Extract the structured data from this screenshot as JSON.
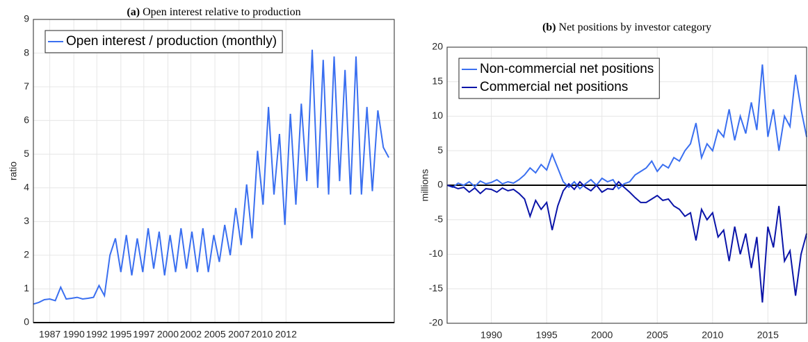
{
  "chart_data": [
    {
      "type": "line",
      "label": "(a)",
      "title": "Open interest relative to production",
      "ylabel": "ratio",
      "x": [
        1986,
        1986.5,
        1987,
        1987.5,
        1988,
        1988.5,
        1989,
        1989.5,
        1990,
        1990.5,
        1991,
        1991.5,
        1992,
        1992.5,
        1993,
        1993.5,
        1994,
        1994.5,
        1995,
        1995.5,
        1996,
        1996.5,
        1997,
        1997.5,
        1998,
        1998.5,
        1999,
        1999.5,
        2000,
        2000.5,
        2001,
        2001.5,
        2002,
        2002.5,
        2003,
        2003.5,
        2004,
        2004.5,
        2005,
        2005.5,
        2006,
        2006.5,
        2007,
        2007.5,
        2008,
        2008.5,
        2009,
        2009.5,
        2010,
        2010.5,
        2011,
        2011.5,
        2012,
        2012.5,
        2013,
        2013.5,
        2014,
        2014.5,
        2015,
        2015.5,
        2016,
        2016.5,
        2017,
        2017.5,
        2018,
        2018.5
      ],
      "series": [
        {
          "name": "Open interest / production (monthly)",
          "color": "#3a6ff0",
          "values": [
            0.55,
            0.6,
            0.68,
            0.7,
            0.65,
            1.05,
            0.7,
            0.72,
            0.75,
            0.7,
            0.72,
            0.75,
            1.1,
            0.8,
            2.0,
            2.5,
            1.5,
            2.6,
            1.4,
            2.5,
            1.5,
            2.8,
            1.6,
            2.7,
            1.4,
            2.6,
            1.5,
            2.8,
            1.6,
            2.7,
            1.5,
            2.8,
            1.5,
            2.6,
            1.8,
            2.9,
            2.0,
            3.4,
            2.3,
            4.1,
            2.5,
            5.1,
            3.5,
            6.4,
            3.8,
            5.6,
            2.9,
            6.2,
            3.5,
            6.5,
            4.2,
            8.1,
            4.0,
            7.8,
            3.8,
            7.9,
            4.2,
            7.5,
            3.8,
            7.9,
            3.8,
            6.4,
            3.9,
            6.3,
            5.2,
            4.9
          ]
        }
      ],
      "xlim": [
        1986,
        2019
      ],
      "ylim": [
        0,
        9
      ],
      "yticks": [
        0,
        1,
        2,
        3,
        4,
        5,
        6,
        7,
        8,
        9
      ],
      "xticks": [
        {
          "value": 1987.5,
          "label": "1987"
        },
        {
          "value": 1989.7,
          "label": "1990"
        },
        {
          "value": 1991.8,
          "label": "1992"
        },
        {
          "value": 1994.0,
          "label": "1995"
        },
        {
          "value": 1996.1,
          "label": "1997"
        },
        {
          "value": 1998.3,
          "label": "2000"
        },
        {
          "value": 2000.4,
          "label": "2002"
        },
        {
          "value": 2002.6,
          "label": "2005"
        },
        {
          "value": 2004.8,
          "label": "2007"
        },
        {
          "value": 2006.9,
          "label": "2010"
        },
        {
          "value": 2009.1,
          "label": "2012"
        }
      ],
      "grid": true,
      "legend": "upper-left"
    },
    {
      "type": "line",
      "label": "(b)",
      "title": "Net positions by investor category",
      "ylabel": "millions",
      "x": [
        1986,
        1986.5,
        1987,
        1987.5,
        1988,
        1988.5,
        1989,
        1989.5,
        1990,
        1990.5,
        1991,
        1991.5,
        1992,
        1992.5,
        1993,
        1993.5,
        1994,
        1994.5,
        1995,
        1995.5,
        1996,
        1996.5,
        1997,
        1997.5,
        1998,
        1998.5,
        1999,
        1999.5,
        2000,
        2000.5,
        2001,
        2001.5,
        2002,
        2002.5,
        2003,
        2003.5,
        2004,
        2004.5,
        2005,
        2005.5,
        2006,
        2006.5,
        2007,
        2007.5,
        2008,
        2008.5,
        2009,
        2009.5,
        2010,
        2010.5,
        2011,
        2011.5,
        2012,
        2012.5,
        2013,
        2013.5,
        2014,
        2014.5,
        2015,
        2015.5,
        2016,
        2016.5,
        2017,
        2017.5,
        2018,
        2018.5
      ],
      "series": [
        {
          "name": "Non-commercial net positions",
          "color": "#3a6ff0",
          "values": [
            0,
            -0.3,
            0.3,
            0,
            0.5,
            -0.2,
            0.6,
            0.2,
            0.4,
            0.8,
            0.2,
            0.5,
            0.3,
            0.8,
            1.5,
            2.5,
            1.8,
            3,
            2.2,
            4.5,
            2.5,
            0.5,
            -0.3,
            0.5,
            -0.5,
            0.2,
            0.8,
            0,
            1,
            0.5,
            0.8,
            -0.5,
            0.2,
            0.5,
            1.5,
            2,
            2.5,
            3.5,
            2,
            3,
            2.5,
            4,
            3.5,
            5,
            6,
            9,
            4,
            6,
            5,
            8,
            7,
            11,
            6.5,
            10,
            7.5,
            12,
            8,
            17.5,
            7,
            11,
            5,
            10,
            8.5,
            16,
            11,
            7
          ]
        },
        {
          "name": "Commercial net positions",
          "color": "#0a14a8",
          "values": [
            0,
            -0.2,
            -0.5,
            -0.3,
            -1,
            -0.4,
            -1.2,
            -0.5,
            -0.6,
            -1,
            -0.4,
            -0.8,
            -0.6,
            -1.2,
            -2,
            -4.5,
            -2.2,
            -3.5,
            -2.5,
            -6.5,
            -3,
            -0.8,
            0.2,
            -0.6,
            0.5,
            -0.3,
            -0.8,
            0,
            -1,
            -0.5,
            -0.6,
            0.5,
            -0.3,
            -1,
            -1.8,
            -2.5,
            -2.5,
            -2,
            -1.5,
            -2.2,
            -2,
            -3,
            -3.5,
            -4.5,
            -4,
            -8,
            -3.5,
            -5,
            -4,
            -7.5,
            -6.5,
            -11,
            -6,
            -10,
            -7,
            -12,
            -7.5,
            -17,
            -6,
            -9,
            -3,
            -11,
            -9.5,
            -16,
            -10,
            -7
          ]
        }
      ],
      "xlim": [
        1986,
        2018.5
      ],
      "ylim": [
        -20,
        20
      ],
      "yticks": [
        -20,
        -15,
        -10,
        -5,
        0,
        5,
        10,
        15,
        20
      ],
      "xticks": [
        1990,
        1995,
        2000,
        2005,
        2010,
        2015
      ],
      "grid": true,
      "zero_line": true,
      "legend": "upper-left"
    }
  ]
}
